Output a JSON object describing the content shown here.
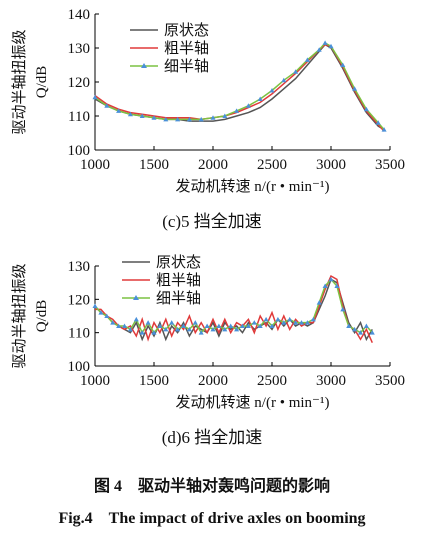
{
  "chart_data": [
    {
      "type": "line",
      "caption": "(c)5 挡全加速",
      "x_label": "发动机转速 n/(r • min⁻¹)",
      "y_label": "驱动半轴扭振级",
      "y_unit": "Q/dB",
      "x": [
        1000,
        1100,
        1200,
        1300,
        1400,
        1500,
        1600,
        1700,
        1800,
        1900,
        2000,
        2100,
        2200,
        2300,
        2400,
        2500,
        2600,
        2700,
        2800,
        2900,
        2950,
        3000,
        3100,
        3200,
        3300,
        3400,
        3450
      ],
      "series": [
        {
          "name": "原状态",
          "color": "#555555",
          "marker": false,
          "values": [
            115,
            113,
            111.5,
            110.5,
            110,
            109.5,
            109,
            109,
            108.5,
            108.5,
            108.5,
            109,
            110,
            111,
            112.5,
            115,
            118,
            121,
            125,
            129,
            131,
            130,
            124,
            117,
            111,
            107,
            106
          ]
        },
        {
          "name": "粗半轴",
          "color": "#e03a3a",
          "marker": false,
          "values": [
            116,
            113.5,
            112,
            111,
            110.5,
            110,
            109.5,
            109.5,
            109.5,
            109,
            109.5,
            110,
            111,
            112.5,
            114,
            116.5,
            119.5,
            122.5,
            126,
            129.5,
            131,
            130.5,
            124.5,
            117.5,
            111.5,
            107.5,
            105.5
          ]
        },
        {
          "name": "细半轴",
          "color": "#7cc242",
          "marker": true,
          "values": [
            115.5,
            113,
            111.5,
            110.5,
            110,
            109.5,
            109,
            109,
            109,
            109,
            109.5,
            110,
            111.5,
            113,
            115,
            117.5,
            120.5,
            123,
            126.5,
            129.5,
            131.5,
            130.5,
            125,
            118,
            112,
            108,
            106
          ]
        }
      ],
      "xlim": [
        1000,
        3500
      ],
      "xticks": [
        1000,
        1500,
        2000,
        2500,
        3000,
        3500
      ],
      "ylim": [
        100,
        140
      ],
      "yticks": [
        100,
        110,
        120,
        130,
        140
      ]
    },
    {
      "type": "line",
      "caption": "(d)6 挡全加速",
      "x_label": "发动机转速 n/(r • min⁻¹)",
      "y_label": "驱动半轴扭振级",
      "y_unit": "Q/dB",
      "x": [
        1000,
        1050,
        1100,
        1150,
        1200,
        1250,
        1300,
        1350,
        1400,
        1450,
        1500,
        1550,
        1600,
        1650,
        1700,
        1750,
        1800,
        1850,
        1900,
        1950,
        2000,
        2050,
        2100,
        2150,
        2200,
        2250,
        2300,
        2350,
        2400,
        2450,
        2500,
        2550,
        2600,
        2650,
        2700,
        2750,
        2800,
        2850,
        2900,
        2950,
        3000,
        3050,
        3100,
        3150,
        3200,
        3250,
        3300,
        3350
      ],
      "series": [
        {
          "name": "原状态",
          "color": "#555555",
          "marker": false,
          "values": [
            118,
            116,
            115,
            113,
            112,
            111,
            110,
            113,
            108,
            112,
            109,
            113,
            108,
            112,
            110,
            113,
            109,
            112,
            111,
            110,
            113,
            109,
            113,
            111,
            112,
            110,
            113,
            111,
            112,
            113,
            111,
            114,
            112,
            114,
            112,
            113,
            112,
            113,
            117,
            121,
            126,
            125,
            119,
            113,
            110,
            113,
            108,
            111
          ]
        },
        {
          "name": "粗半轴",
          "color": "#e03a3a",
          "marker": false,
          "values": [
            117,
            117,
            115,
            114,
            112,
            111,
            112,
            109,
            114,
            108,
            113,
            110,
            114,
            109,
            113,
            111,
            115,
            110,
            113,
            110,
            114,
            110,
            114,
            110,
            113,
            112,
            114,
            110,
            115,
            112,
            116,
            111,
            115,
            111,
            114,
            112,
            113,
            113,
            118,
            123,
            127,
            126,
            118,
            112,
            111,
            108,
            111,
            107
          ]
        },
        {
          "name": "细半轴",
          "color": "#7cc242",
          "marker": true,
          "values": [
            118,
            116,
            115,
            113,
            112,
            112,
            111,
            114,
            110,
            113,
            110,
            112,
            111,
            113,
            111,
            112,
            111,
            113,
            110,
            112,
            111,
            112,
            111,
            112,
            111,
            112,
            112,
            113,
            112,
            114,
            112,
            114,
            113,
            114,
            113,
            113,
            113,
            114,
            119,
            124,
            126,
            124,
            117,
            112,
            111,
            110,
            112,
            110
          ]
        }
      ],
      "xlim": [
        1000,
        3500
      ],
      "xticks": [
        1000,
        1500,
        2000,
        2500,
        3000,
        3500
      ],
      "ylim": [
        100,
        130
      ],
      "yticks": [
        100,
        110,
        120,
        130
      ]
    }
  ],
  "figure": {
    "title_zh": "图 4　驱动半轴对轰鸣问题的影响",
    "title_en": "Fig.4　The impact of drive axles on booming"
  }
}
